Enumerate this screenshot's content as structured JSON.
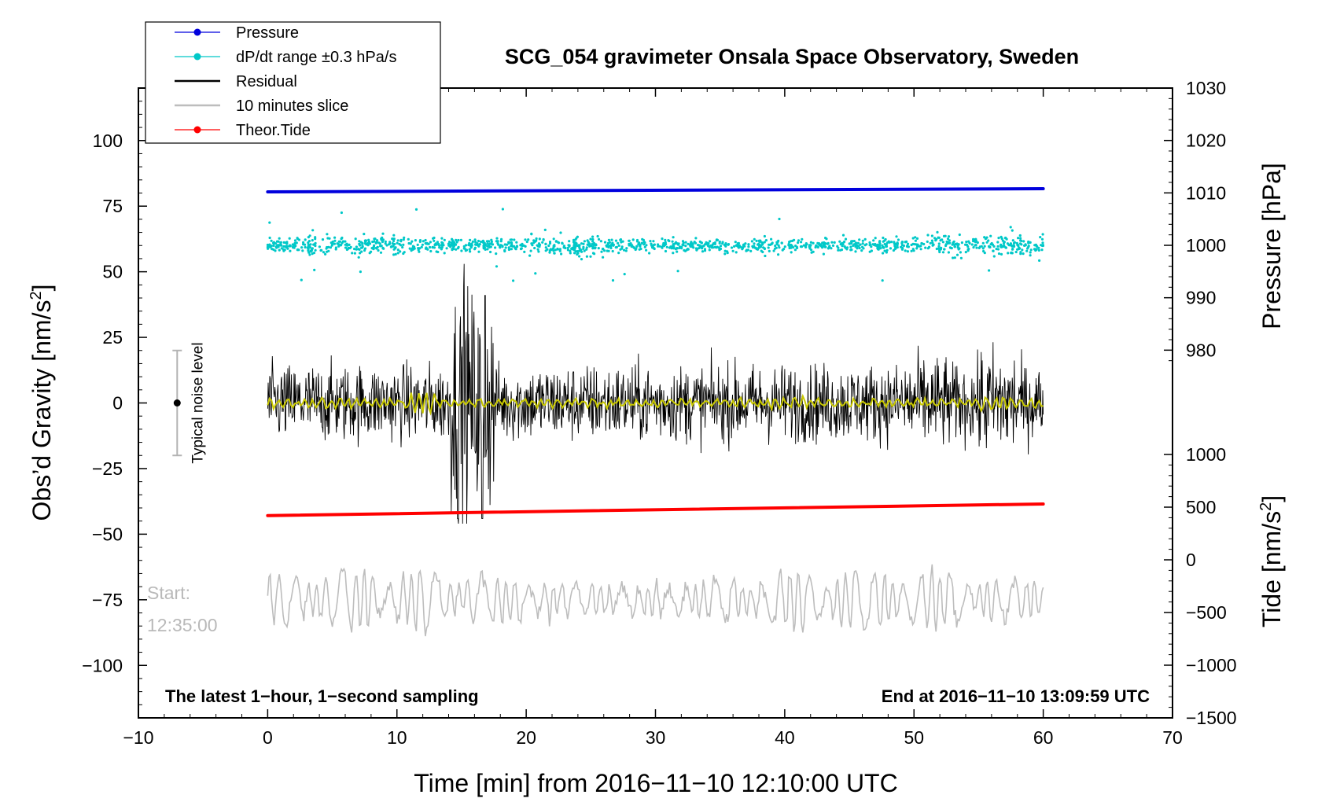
{
  "chart_data": {
    "type": "line",
    "title": "SCG_054 gravimeter Onsala Space Observatory, Sweden",
    "xlabel": "Time [min] from 2016−11−10 12:10:00 UTC",
    "ylabel_left": "Obs’d Gravity [nm/s",
    "ylabel_left_sup": "2",
    "ylabel_left_close": "]",
    "ylabel_right_pressure": "Pressure [hPa]",
    "ylabel_right_tide": "Tide [nm/s",
    "ylabel_right_tide_sup": "2",
    "ylabel_right_tide_close": "]",
    "xlim": [
      -10,
      70
    ],
    "ylim_left": [
      -120,
      120
    ],
    "x_ticks": [
      -10,
      0,
      10,
      20,
      30,
      40,
      50,
      60,
      70
    ],
    "x_tick_labels": [
      "−10",
      "0",
      "10",
      "20",
      "30",
      "40",
      "50",
      "60",
      "70"
    ],
    "y_left_ticks": [
      100,
      75,
      50,
      25,
      0,
      -25,
      -50,
      -75,
      -100
    ],
    "y_left_tick_labels": [
      "100",
      "75",
      "50",
      "25",
      "0",
      "−25",
      "−50",
      "−75",
      "−100"
    ],
    "pressure_axis": {
      "range": [
        970,
        1030
      ],
      "ticks": [
        1030,
        1020,
        1010,
        1000,
        990,
        980
      ],
      "tick_labels": [
        "1030",
        "1020",
        "1010",
        "1000",
        "990",
        "980"
      ]
    },
    "tide_axis": {
      "range": [
        -1500,
        1000
      ],
      "ticks": [
        1000,
        500,
        0,
        -500,
        -1000,
        -1500
      ],
      "tick_labels": [
        "1000",
        "500",
        "0",
        "−500",
        "−1000",
        "−1500"
      ]
    },
    "legend": [
      {
        "label": "Pressure",
        "color": "#0000dd",
        "marker": "dot"
      },
      {
        "label": "dP/dt range ±0.3 hPa/s",
        "color": "#00c8c8",
        "marker": "dot"
      },
      {
        "label": "Residual",
        "color": "#000000",
        "marker": "line"
      },
      {
        "label": "10 minutes slice",
        "color": "#bdbdbd",
        "marker": "line"
      },
      {
        "label": "Theor.Tide",
        "color": "#ff0000",
        "marker": "dot"
      }
    ],
    "series": [
      {
        "name": "Pressure",
        "axis": "pressure",
        "color": "#0000dd",
        "x": [
          0,
          60
        ],
        "values": [
          1010.2,
          1010.8
        ]
      },
      {
        "name": "dP/dt",
        "axis": "pressure",
        "color": "#00c8c8",
        "center": 1000.0,
        "typical_spread": 1.6,
        "x_range": [
          0,
          60
        ]
      },
      {
        "name": "Residual",
        "axis": "gravity",
        "color": "#000000",
        "typical_amplitude": 12,
        "max_amplitude": 53,
        "min_value": -45,
        "x_range": [
          0,
          60
        ]
      },
      {
        "name": "Residual smoothed",
        "axis": "gravity",
        "color": "#c8c800",
        "typical_amplitude": 2,
        "x_range": [
          0,
          60
        ]
      },
      {
        "name": "Theor.Tide",
        "axis": "tide",
        "color": "#ff0000",
        "x": [
          0,
          60
        ],
        "values": [
          420,
          530
        ]
      },
      {
        "name": "10 minutes slice",
        "axis": "gravity",
        "color": "#bdbdbd",
        "center": -75,
        "amplitude": 12,
        "x_range": [
          0,
          60
        ]
      }
    ],
    "noise_level": {
      "label": "Typical noise level",
      "center": 0,
      "half_range": 20
    },
    "annotations": {
      "start_label": "Start:",
      "start_time": "12:35:00",
      "bottom_left": "The latest 1−hour, 1−second sampling",
      "bottom_right": "End at 2016−11−10 13:09:59 UTC"
    },
    "colors": {
      "pressure": "#0000dd",
      "dpdt": "#00c8c8",
      "residual": "#000000",
      "smoothed": "#c8c800",
      "slice": "#bdbdbd",
      "tide": "#ff0000"
    }
  }
}
